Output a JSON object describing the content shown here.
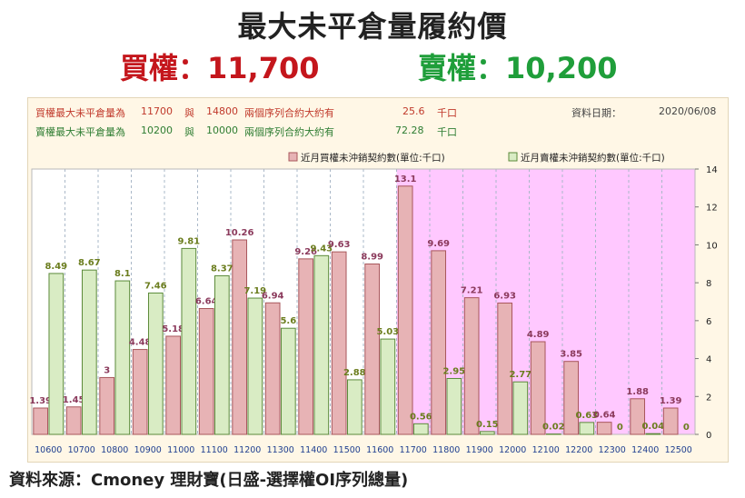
{
  "header": {
    "title": "最大未平倉量履約價",
    "call_line": "買權：11,700",
    "put_line": "賣權：10,200"
  },
  "info": {
    "call_label": "買權最大未平倉量為",
    "call_strike": "11700",
    "conj": "與",
    "call_strike2": "14800",
    "pair_label": "兩個序列合約大約有",
    "call_amount": "25.6",
    "unit": "千口",
    "put_label": "賣權最大未平倉量為",
    "put_strike": "10200",
    "put_strike2": "10000",
    "put_amount": "72.28",
    "date_label": "資料日期：",
    "date_value": "2020/06/08"
  },
  "footer": "資料來源：Cmoney 理財寶(日盛-選擇權OI序列總量)",
  "colors": {
    "call_fill": "#e7b3b5",
    "call_stroke": "#a8575c",
    "put_fill": "#d9ecc4",
    "put_stroke": "#5b8a3a",
    "call_text": "#8b3a5c",
    "put_text": "#6b7d1e",
    "highlight": "#ffc8ff"
  },
  "chart_data": {
    "type": "bar",
    "categories": [
      "10600",
      "10700",
      "10800",
      "10900",
      "11000",
      "11100",
      "11200",
      "11300",
      "11400",
      "11500",
      "11600",
      "11700",
      "11800",
      "11900",
      "12000",
      "12100",
      "12200",
      "12300",
      "12400",
      "12500"
    ],
    "series": [
      {
        "name": "近月買權未沖銷契約數(單位:千口)",
        "values": [
          1.39,
          1.45,
          3,
          4.48,
          5.18,
          6.64,
          10.26,
          6.94,
          9.26,
          9.63,
          8.99,
          13.1,
          9.69,
          7.21,
          6.93,
          4.89,
          3.85,
          0.64,
          1.88,
          1.39
        ]
      },
      {
        "name": "近月賣權未沖銷契約數(單位:千口)",
        "values": [
          8.49,
          8.67,
          8.1,
          7.46,
          9.81,
          8.37,
          7.19,
          5.6,
          9.43,
          2.88,
          5.03,
          0.56,
          2.95,
          0.15,
          2.77,
          0.02,
          0.63,
          0,
          0.04,
          0
        ]
      }
    ],
    "value_labels": {
      "call": [
        "1.39",
        "1.45",
        "3",
        "4.48",
        "5.18",
        "6.64",
        "10.26",
        "6.94",
        "9.26",
        "9.63",
        "8.99",
        "13.1",
        "9.69",
        "7.21",
        "6.93",
        "4.89",
        "3.85",
        "0.64",
        "1.88",
        "1.39"
      ],
      "put": [
        "8.49",
        "8.67",
        "8.1",
        "7.46",
        "9.81",
        "8.37",
        "7.19",
        "5.6",
        "9.43",
        "2.88",
        "5.03",
        "0.56",
        "2.95",
        "0.15",
        "2.77",
        "0.02",
        "0.63",
        "0",
        "0.04",
        "0"
      ]
    },
    "ylim": [
      0,
      14
    ],
    "yticks": [
      "0",
      "2",
      "4",
      "6",
      "8",
      "10",
      "12",
      "14"
    ],
    "y_axis_side": "right",
    "highlight_from_category": "11700",
    "legend_position": "top-right",
    "grid": true
  }
}
